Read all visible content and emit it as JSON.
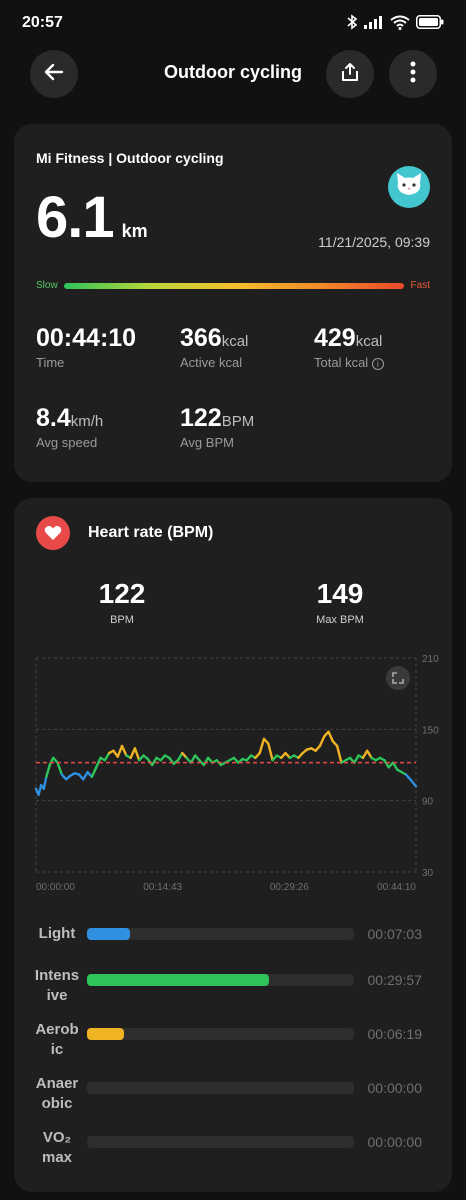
{
  "status": {
    "time": "20:57",
    "battery": "battery-icon"
  },
  "appbar": {
    "title": "Outdoor cycling",
    "back_icon": "back-arrow-icon",
    "share_icon": "share-icon",
    "more_icon": "more-vertical-icon"
  },
  "summary": {
    "source": "Mi Fitness | Outdoor cycling",
    "distance": "6.1",
    "distance_unit": "km",
    "datetime": "11/21/2025, 09:39",
    "slow_label": "Slow",
    "fast_label": "Fast",
    "stats": [
      {
        "value": "00:44:10",
        "unit": "",
        "label": "Time"
      },
      {
        "value": "366",
        "unit": "kcal",
        "label": "Active kcal"
      },
      {
        "value": "429",
        "unit": "kcal",
        "label": "Total kcal"
      },
      {
        "value": "8.4",
        "unit": "km/h",
        "label": "Avg speed"
      },
      {
        "value": "122",
        "unit": "BPM",
        "label": "Avg BPM"
      }
    ]
  },
  "heart": {
    "title": "Heart rate (BPM)",
    "avg_value": "122",
    "avg_label": "BPM",
    "max_value": "149",
    "max_label": "Max BPM",
    "colors": {
      "light": "#2f8fe0",
      "intensive": "#2ec45a",
      "aerobic": "#f0b323",
      "avg_line": "#e84a4a"
    }
  },
  "chart_data": {
    "type": "line",
    "y_ticks": [
      "210",
      "150",
      "90",
      "30"
    ],
    "ylim": [
      30,
      210
    ],
    "x_ticks": [
      "00:00:00",
      "00:14:43",
      "00:29:26",
      "00:44:10"
    ],
    "xlim_minutes": [
      0,
      44.17
    ],
    "avg_line_bpm": 122,
    "series": [
      {
        "x_minutes": [
          0,
          0.3,
          0.6,
          0.9,
          1.2,
          1.6,
          2.0,
          2.5,
          3.0,
          3.5,
          4.0,
          4.5,
          5.0,
          5.5,
          6.0,
          6.5,
          7.0,
          7.5,
          8.0,
          8.5,
          9.0,
          9.5,
          10.0,
          10.5,
          11.0,
          11.5,
          12.0,
          12.5,
          13.0,
          13.5,
          14.0,
          14.5,
          15.0,
          15.5,
          16.0,
          16.5,
          17.0,
          17.5,
          18.0,
          18.5,
          19.0,
          19.5,
          20.0,
          20.5,
          21.0,
          21.5,
          22.0,
          22.5,
          23.0,
          23.5,
          24.0,
          24.5,
          25.0,
          25.5,
          26.0,
          26.5,
          27.0,
          27.5,
          28.0,
          28.5,
          29.0,
          29.5,
          30.0,
          30.5,
          31.0,
          31.5,
          32.0,
          32.5,
          33.0,
          33.5,
          34.0,
          34.5,
          35.0,
          35.5,
          36.0,
          36.5,
          37.0,
          37.5,
          38.0,
          38.5,
          39.0,
          39.5,
          40.0,
          40.5,
          41.0,
          41.5,
          42.0,
          42.5,
          43.0,
          43.5,
          44.17
        ],
        "bpm": [
          100,
          95,
          103,
          100,
          110,
          120,
          126,
          122,
          112,
          108,
          111,
          113,
          112,
          108,
          114,
          110,
          118,
          126,
          124,
          130,
          132,
          127,
          136,
          128,
          126,
          134,
          124,
          128,
          125,
          120,
          126,
          124,
          128,
          126,
          121,
          124,
          130,
          126,
          122,
          128,
          124,
          120,
          126,
          122,
          124,
          120,
          122,
          124,
          126,
          122,
          125,
          124,
          128,
          126,
          130,
          142,
          138,
          124,
          128,
          126,
          130,
          126,
          128,
          126,
          130,
          133,
          134,
          132,
          136,
          144,
          148,
          140,
          136,
          122,
          124,
          126,
          122,
          128,
          126,
          132,
          126,
          124,
          126,
          124,
          118,
          122,
          116,
          114,
          112,
          108,
          102
        ]
      }
    ]
  },
  "zones": [
    {
      "label": "Light",
      "time": "00:07:03",
      "fraction": 0.16,
      "color": "#2f8fe0"
    },
    {
      "label": "Intens ive",
      "time": "00:29:57",
      "fraction": 0.68,
      "color": "#2ec45a"
    },
    {
      "label": "Aerob ic",
      "time": "00:06:19",
      "fraction": 0.14,
      "color": "#f0b323"
    },
    {
      "label": "Anaer obic",
      "time": "00:00:00",
      "fraction": 0,
      "color": "#e84a4a"
    },
    {
      "label": "VO₂ max",
      "time": "00:00:00",
      "fraction": 0,
      "color": "#a050e0"
    }
  ]
}
